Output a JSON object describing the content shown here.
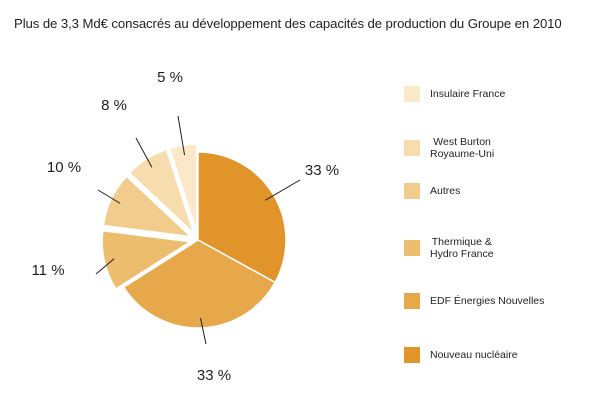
{
  "chart_data": {
    "type": "pie",
    "title": "Plus de 3,3 Md€ consacrés au développement des capacités de production du Groupe en 2010",
    "slices": [
      {
        "name": "Nouveau nucléaire",
        "value": 33,
        "label": "33 %",
        "color": "#e09429"
      },
      {
        "name": "EDF Énergies Nouvelles",
        "value": 33,
        "label": "33 %",
        "color": "#e6a84a"
      },
      {
        "name": "Thermique & Hydro France",
        "value": 11,
        "label": "11 %",
        "color": "#ecbd6c"
      },
      {
        "name": "Autres",
        "value": 10,
        "label": "10 %",
        "color": "#f2cc8c"
      },
      {
        "name": "West Burton Royaume-Uni",
        "value": 8,
        "label": "8 %",
        "color": "#f7dcad"
      },
      {
        "name": "Insulaire France",
        "value": 5,
        "label": "5 %",
        "color": "#fbe8c8"
      }
    ],
    "legend": [
      {
        "lines": [
          "Insulaire France"
        ],
        "color": "#fbe8c8"
      },
      {
        "lines": [
          "West Burton",
          "Royaume-Uni"
        ],
        "color": "#f7dcad"
      },
      {
        "lines": [
          "Autres"
        ],
        "color": "#f2cc8c"
      },
      {
        "lines": [
          "Thermique &",
          "Hydro France"
        ],
        "color": "#ecbd6c"
      },
      {
        "lines": [
          "EDF Énergies Nouvelles"
        ],
        "color": "#e6a84a"
      },
      {
        "lines": [
          "Nouveau nucléaire"
        ],
        "color": "#e09429"
      }
    ],
    "legend_position": "right",
    "exploded_slices": [
      "Thermique & Hydro France",
      "Autres",
      "West Burton Royaume-Uni",
      "Insulaire France"
    ]
  }
}
